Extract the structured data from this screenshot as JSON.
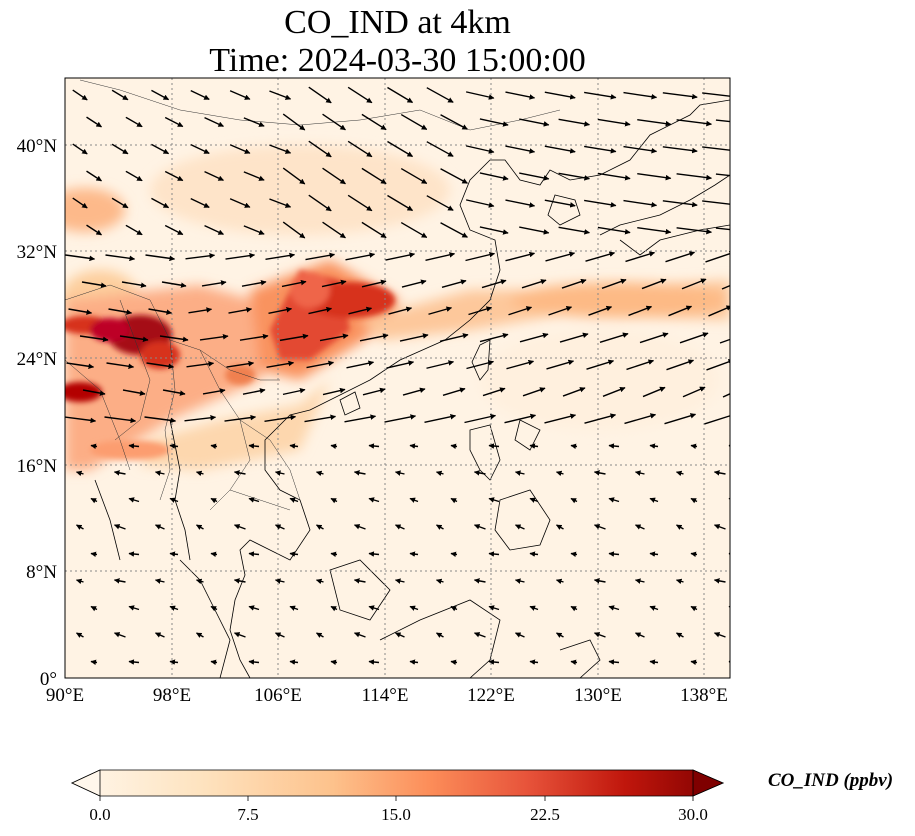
{
  "title": {
    "line1": "CO_IND at 4km",
    "line2": "Time: 2024-03-30 15:00:00"
  },
  "map": {
    "projection": "PlateCarree",
    "lon_range": [
      90,
      140
    ],
    "lat_range": [
      0,
      45
    ],
    "gridlines": "dotted",
    "lon_ticks": [
      "90°E",
      "98°E",
      "106°E",
      "114°E",
      "122°E",
      "130°E",
      "138°E"
    ],
    "lat_ticks": [
      "0°",
      "8°N",
      "16°N",
      "24°N",
      "32°N",
      "40°N"
    ],
    "field": "CO_IND",
    "units": "ppbv",
    "colormap": "OrRd",
    "colors": {
      "low": "#fff7ec",
      "mid": "#fc8d59",
      "high": "#7f0000"
    }
  },
  "colorbar": {
    "title": "CO_IND (ppbv)",
    "ticks": [
      "0.0",
      "7.5",
      "15.0",
      "22.5",
      "30.0"
    ],
    "extend": "both"
  }
}
